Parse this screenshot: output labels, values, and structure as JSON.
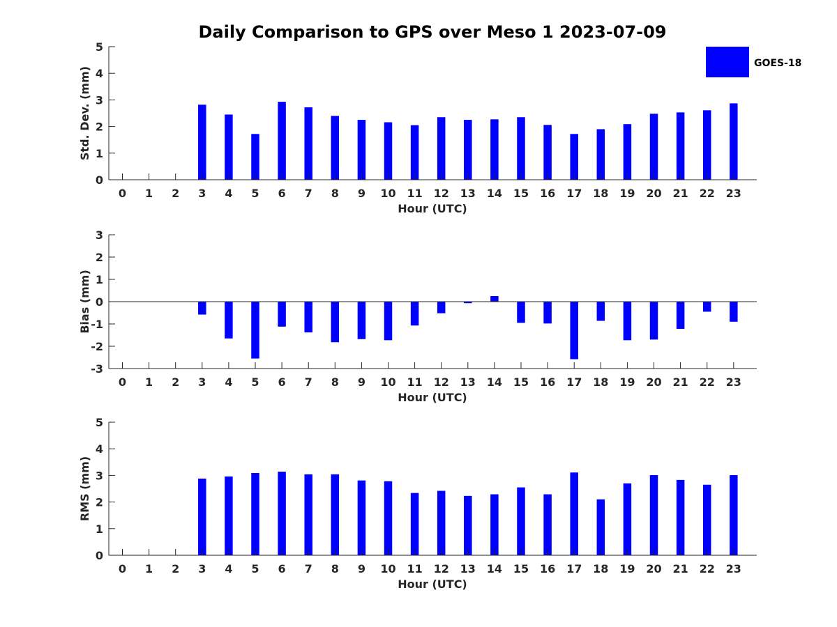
{
  "title": "Daily Comparison to GPS over Meso 1 2023-07-09",
  "legend": {
    "label": "GOES-18",
    "color": "#0000ff",
    "placement": "top-right"
  },
  "chart_data": [
    {
      "type": "bar",
      "xlabel": "Hour (UTC)",
      "ylabel": "Std. Dev. (mm)",
      "ylim": [
        0,
        5
      ],
      "yticks": [
        0,
        1,
        2,
        3,
        4,
        5
      ],
      "categories": [
        0,
        1,
        2,
        3,
        4,
        5,
        6,
        7,
        8,
        9,
        10,
        11,
        12,
        13,
        14,
        15,
        16,
        17,
        18,
        19,
        20,
        21,
        22,
        23
      ],
      "series": [
        {
          "name": "GOES-18",
          "color": "#0000ff",
          "values": [
            null,
            null,
            null,
            2.82,
            2.45,
            1.72,
            2.93,
            2.72,
            2.4,
            2.25,
            2.16,
            2.05,
            2.35,
            2.25,
            2.27,
            2.35,
            2.06,
            1.72,
            1.9,
            2.09,
            2.48,
            2.53,
            2.61,
            2.87
          ]
        }
      ]
    },
    {
      "type": "bar",
      "xlabel": "Hour (UTC)",
      "ylabel": "Bias (mm)",
      "ylim": [
        -3,
        3
      ],
      "yticks": [
        -3,
        -2,
        -1,
        0,
        1,
        2,
        3
      ],
      "categories": [
        0,
        1,
        2,
        3,
        4,
        5,
        6,
        7,
        8,
        9,
        10,
        11,
        12,
        13,
        14,
        15,
        16,
        17,
        18,
        19,
        20,
        21,
        22,
        23
      ],
      "series": [
        {
          "name": "GOES-18",
          "color": "#0000ff",
          "values": [
            null,
            null,
            null,
            -0.58,
            -1.65,
            -2.55,
            -1.12,
            -1.38,
            -1.82,
            -1.68,
            -1.73,
            -1.07,
            -0.52,
            -0.07,
            0.25,
            -0.95,
            -0.98,
            -2.58,
            -0.86,
            -1.73,
            -1.7,
            -1.22,
            -0.45,
            -0.9
          ]
        }
      ]
    },
    {
      "type": "bar",
      "xlabel": "Hour (UTC)",
      "ylabel": "RMS (mm)",
      "ylim": [
        0,
        5
      ],
      "yticks": [
        0,
        1,
        2,
        3,
        4,
        5
      ],
      "categories": [
        0,
        1,
        2,
        3,
        4,
        5,
        6,
        7,
        8,
        9,
        10,
        11,
        12,
        13,
        14,
        15,
        16,
        17,
        18,
        19,
        20,
        21,
        22,
        23
      ],
      "series": [
        {
          "name": "GOES-18",
          "color": "#0000ff",
          "values": [
            null,
            null,
            null,
            2.88,
            2.96,
            3.09,
            3.14,
            3.04,
            3.04,
            2.81,
            2.78,
            2.34,
            2.42,
            2.23,
            2.29,
            2.55,
            2.29,
            3.11,
            2.1,
            2.7,
            3.01,
            2.83,
            2.65,
            3.01
          ]
        }
      ]
    }
  ]
}
